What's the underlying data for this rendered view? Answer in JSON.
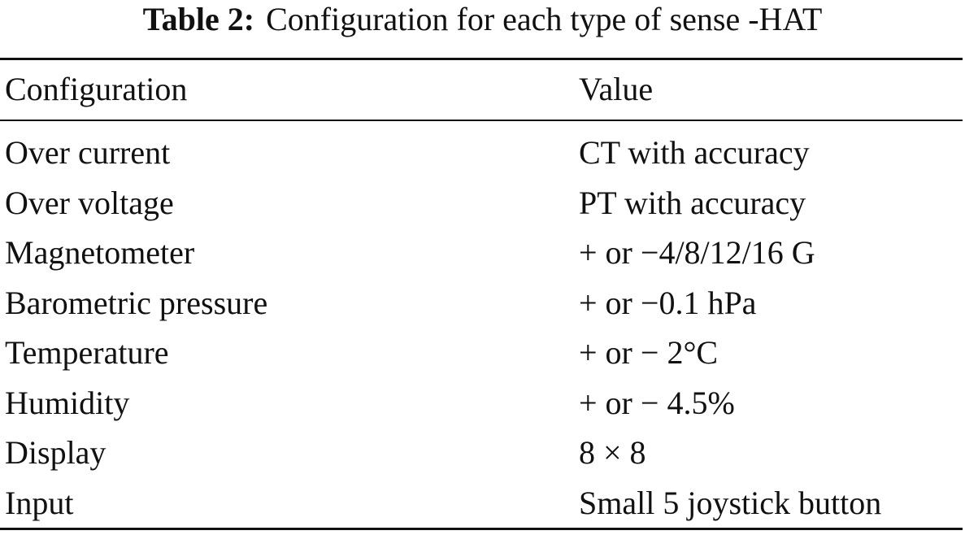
{
  "caption": {
    "label": "Table 2:",
    "text": "Configuration for each type of sense -HAT"
  },
  "table": {
    "header": [
      "Configuration",
      "Value"
    ],
    "rows": [
      [
        "Over current",
        "CT with accuracy"
      ],
      [
        "Over voltage",
        "PT with accuracy"
      ],
      [
        "Magnetometer",
        "+ or −4/8/12/16 G"
      ],
      [
        "Barometric pressure",
        "+ or −0.1 hPa"
      ],
      [
        "Temperature",
        "+ or − 2°C"
      ],
      [
        "Humidity",
        "+ or − 4.5%"
      ],
      [
        "Display",
        "8 × 8"
      ],
      [
        "Input",
        "Small 5 joystick button"
      ]
    ]
  }
}
